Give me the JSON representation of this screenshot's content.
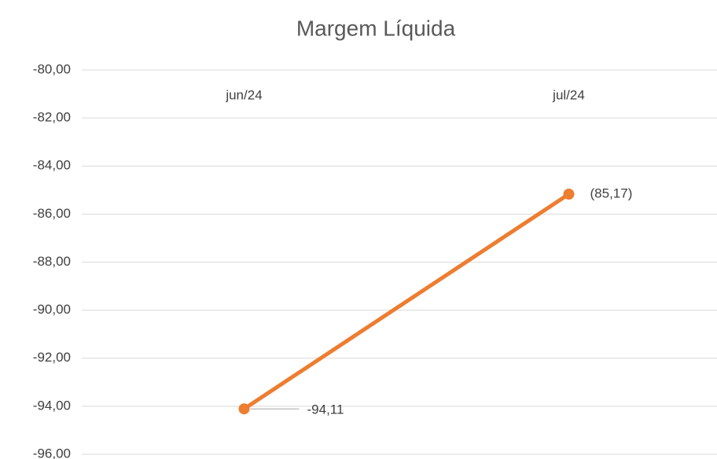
{
  "chart_data": {
    "type": "line",
    "title": "Margem Líquida",
    "categories": [
      "jun/24",
      "jul/24"
    ],
    "series": [
      {
        "name": "Margem Líquida",
        "color": "#ed7d31",
        "values": [
          -94.11,
          -85.17
        ],
        "value_labels": [
          "-94,11",
          "(85,17)"
        ]
      }
    ],
    "ylim": [
      -96,
      -80
    ],
    "yticks": [
      {
        "value": -80,
        "label": "-80,00"
      },
      {
        "value": -82,
        "label": "-82,00"
      },
      {
        "value": -84,
        "label": "-84,00"
      },
      {
        "value": -86,
        "label": "-86,00"
      },
      {
        "value": -88,
        "label": "-88,00"
      },
      {
        "value": -90,
        "label": "-90,00"
      },
      {
        "value": -92,
        "label": "-92,00"
      },
      {
        "value": -94,
        "label": "-94,00"
      },
      {
        "value": -96,
        "label": "-96,00"
      }
    ],
    "grid": true
  }
}
